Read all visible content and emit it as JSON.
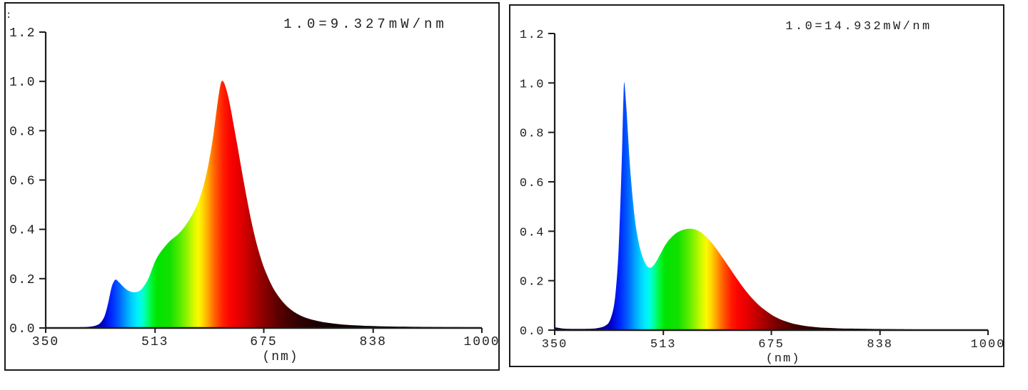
{
  "colors": {
    "background": "#ffffff",
    "panel_border": "#1a1a1a",
    "axis": "#1c1c1c",
    "text": "#1f1f1f"
  },
  "spectral_gradient": [
    {
      "nm": 350,
      "color": "#16003a"
    },
    {
      "nm": 415,
      "color": "#0b0070"
    },
    {
      "nm": 435,
      "color": "#0000c8"
    },
    {
      "nm": 448,
      "color": "#0028ff"
    },
    {
      "nm": 458,
      "color": "#0058ff"
    },
    {
      "nm": 468,
      "color": "#0094ff"
    },
    {
      "nm": 478,
      "color": "#00ccff"
    },
    {
      "nm": 487,
      "color": "#00f0ff"
    },
    {
      "nm": 494,
      "color": "#00ffd5"
    },
    {
      "nm": 501,
      "color": "#00ff85"
    },
    {
      "nm": 508,
      "color": "#00f52e"
    },
    {
      "nm": 516,
      "color": "#00e400"
    },
    {
      "nm": 535,
      "color": "#12e000"
    },
    {
      "nm": 550,
      "color": "#55ec00"
    },
    {
      "nm": 562,
      "color": "#9cf400"
    },
    {
      "nm": 571,
      "color": "#d8fa00"
    },
    {
      "nm": 578,
      "color": "#fdf800"
    },
    {
      "nm": 585,
      "color": "#ffd400"
    },
    {
      "nm": 592,
      "color": "#ffa600"
    },
    {
      "nm": 599,
      "color": "#ff7400"
    },
    {
      "nm": 607,
      "color": "#ff4400"
    },
    {
      "nm": 615,
      "color": "#ff1c00"
    },
    {
      "nm": 624,
      "color": "#fc0400"
    },
    {
      "nm": 636,
      "color": "#ea0000"
    },
    {
      "nm": 648,
      "color": "#d00000"
    },
    {
      "nm": 660,
      "color": "#b00000"
    },
    {
      "nm": 672,
      "color": "#920000"
    },
    {
      "nm": 684,
      "color": "#760000"
    },
    {
      "nm": 697,
      "color": "#5a0000"
    },
    {
      "nm": 712,
      "color": "#420000"
    },
    {
      "nm": 730,
      "color": "#2e0000"
    },
    {
      "nm": 752,
      "color": "#1d0000"
    },
    {
      "nm": 780,
      "color": "#120000"
    },
    {
      "nm": 820,
      "color": "#0b0000"
    },
    {
      "nm": 880,
      "color": "#060000"
    },
    {
      "nm": 1000,
      "color": "#040000"
    }
  ],
  "chart_data": [
    {
      "type": "area",
      "title": "",
      "annotation": "1.0=9.327mW/nm",
      "xlabel": "(nm)",
      "ylabel": "",
      "corner_mark": ":",
      "xlim": [
        350,
        1000
      ],
      "ylim": [
        0,
        1.2
      ],
      "x_ticks": [
        350,
        513,
        675,
        838,
        1000
      ],
      "y_ticks": [
        0.0,
        0.2,
        0.4,
        0.6,
        0.8,
        1.0,
        1.2
      ],
      "grid": false,
      "legend": false,
      "fill_style": "spectral-wavelength-gradient",
      "points": [
        [
          350,
          0.003
        ],
        [
          400,
          0.003
        ],
        [
          415,
          0.005
        ],
        [
          425,
          0.01
        ],
        [
          432,
          0.022
        ],
        [
          438,
          0.05
        ],
        [
          443,
          0.1
        ],
        [
          448,
          0.163
        ],
        [
          452,
          0.19
        ],
        [
          455,
          0.196
        ],
        [
          459,
          0.186
        ],
        [
          464,
          0.172
        ],
        [
          470,
          0.157
        ],
        [
          476,
          0.148
        ],
        [
          482,
          0.145
        ],
        [
          487,
          0.147
        ],
        [
          492,
          0.155
        ],
        [
          497,
          0.172
        ],
        [
          503,
          0.2
        ],
        [
          508,
          0.235
        ],
        [
          513,
          0.27
        ],
        [
          518,
          0.295
        ],
        [
          524,
          0.318
        ],
        [
          530,
          0.338
        ],
        [
          536,
          0.355
        ],
        [
          542,
          0.368
        ],
        [
          548,
          0.382
        ],
        [
          554,
          0.4
        ],
        [
          560,
          0.422
        ],
        [
          566,
          0.448
        ],
        [
          572,
          0.478
        ],
        [
          578,
          0.515
        ],
        [
          584,
          0.565
        ],
        [
          590,
          0.63
        ],
        [
          595,
          0.7
        ],
        [
          600,
          0.785
        ],
        [
          605,
          0.89
        ],
        [
          609,
          0.965
        ],
        [
          612,
          1.0
        ],
        [
          615,
          0.998
        ],
        [
          618,
          0.978
        ],
        [
          622,
          0.938
        ],
        [
          626,
          0.885
        ],
        [
          630,
          0.825
        ],
        [
          635,
          0.75
        ],
        [
          640,
          0.672
        ],
        [
          645,
          0.595
        ],
        [
          650,
          0.522
        ],
        [
          655,
          0.452
        ],
        [
          660,
          0.39
        ],
        [
          665,
          0.335
        ],
        [
          670,
          0.288
        ],
        [
          675,
          0.247
        ],
        [
          681,
          0.207
        ],
        [
          687,
          0.172
        ],
        [
          693,
          0.144
        ],
        [
          700,
          0.117
        ],
        [
          708,
          0.092
        ],
        [
          716,
          0.073
        ],
        [
          725,
          0.057
        ],
        [
          735,
          0.044
        ],
        [
          745,
          0.035
        ],
        [
          756,
          0.028
        ],
        [
          768,
          0.022
        ],
        [
          782,
          0.017
        ],
        [
          797,
          0.013
        ],
        [
          815,
          0.01
        ],
        [
          835,
          0.008
        ],
        [
          860,
          0.006
        ],
        [
          890,
          0.005
        ],
        [
          930,
          0.004
        ],
        [
          1000,
          0.003
        ]
      ]
    },
    {
      "type": "area",
      "title": "",
      "annotation": "1.0=14.932mW/nm",
      "xlabel": "(nm)",
      "ylabel": "",
      "xlim": [
        350,
        1000
      ],
      "ylim": [
        0,
        1.2
      ],
      "x_ticks": [
        350,
        513,
        675,
        838,
        1000
      ],
      "y_ticks": [
        0.0,
        0.2,
        0.4,
        0.6,
        0.8,
        1.0,
        1.2
      ],
      "grid": false,
      "legend": false,
      "fill_style": "spectral-wavelength-gradient",
      "points": [
        [
          350,
          0.012
        ],
        [
          356,
          0.009
        ],
        [
          364,
          0.006
        ],
        [
          375,
          0.005
        ],
        [
          395,
          0.005
        ],
        [
          408,
          0.006
        ],
        [
          416,
          0.009
        ],
        [
          422,
          0.013
        ],
        [
          427,
          0.02
        ],
        [
          431,
          0.03
        ],
        [
          435,
          0.055
        ],
        [
          439,
          0.1
        ],
        [
          442,
          0.17
        ],
        [
          445,
          0.28
        ],
        [
          447,
          0.4
        ],
        [
          449,
          0.55
        ],
        [
          451,
          0.72
        ],
        [
          452,
          0.83
        ],
        [
          453,
          0.93
        ],
        [
          454,
          1.0
        ],
        [
          455,
          0.99
        ],
        [
          456,
          0.955
        ],
        [
          458,
          0.88
        ],
        [
          460,
          0.79
        ],
        [
          462,
          0.7
        ],
        [
          464,
          0.625
        ],
        [
          467,
          0.532
        ],
        [
          470,
          0.455
        ],
        [
          473,
          0.398
        ],
        [
          477,
          0.342
        ],
        [
          481,
          0.302
        ],
        [
          485,
          0.275
        ],
        [
          489,
          0.258
        ],
        [
          493,
          0.252
        ],
        [
          497,
          0.258
        ],
        [
          501,
          0.272
        ],
        [
          505,
          0.29
        ],
        [
          510,
          0.315
        ],
        [
          515,
          0.34
        ],
        [
          520,
          0.36
        ],
        [
          526,
          0.378
        ],
        [
          532,
          0.392
        ],
        [
          538,
          0.401
        ],
        [
          544,
          0.407
        ],
        [
          550,
          0.41
        ],
        [
          556,
          0.41
        ],
        [
          562,
          0.406
        ],
        [
          568,
          0.398
        ],
        [
          574,
          0.386
        ],
        [
          580,
          0.37
        ],
        [
          586,
          0.352
        ],
        [
          592,
          0.331
        ],
        [
          598,
          0.308
        ],
        [
          604,
          0.285
        ],
        [
          610,
          0.261
        ],
        [
          616,
          0.237
        ],
        [
          622,
          0.213
        ],
        [
          628,
          0.19
        ],
        [
          634,
          0.168
        ],
        [
          640,
          0.148
        ],
        [
          646,
          0.129
        ],
        [
          652,
          0.112
        ],
        [
          658,
          0.097
        ],
        [
          664,
          0.084
        ],
        [
          670,
          0.072
        ],
        [
          676,
          0.061
        ],
        [
          682,
          0.052
        ],
        [
          689,
          0.043
        ],
        [
          696,
          0.036
        ],
        [
          704,
          0.029
        ],
        [
          713,
          0.023
        ],
        [
          723,
          0.018
        ],
        [
          734,
          0.014
        ],
        [
          746,
          0.011
        ],
        [
          760,
          0.009
        ],
        [
          776,
          0.007
        ],
        [
          795,
          0.006
        ],
        [
          820,
          0.005
        ],
        [
          855,
          0.004
        ],
        [
          900,
          0.003
        ],
        [
          1000,
          0.003
        ]
      ]
    }
  ]
}
